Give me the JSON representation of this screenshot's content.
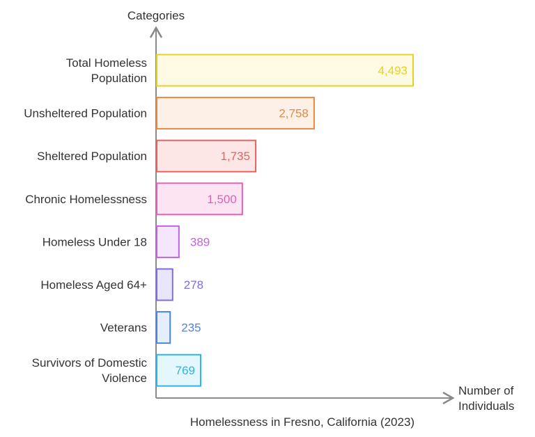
{
  "chart_data": {
    "type": "bar",
    "orientation": "horizontal",
    "title": "Homelessness in Fresno, California (2023)",
    "xlabel": "Number of Individuals",
    "ylabel": "Categories",
    "xlim": [
      0,
      4700
    ],
    "grid": false,
    "categories": [
      "Total Homeless Population",
      "Unsheltered Population",
      "Sheltered Population",
      "Chronic Homelessness",
      "Homeless Under 18",
      "Homeless Aged 64+",
      "Veterans",
      "Survivors of Domestic Violence"
    ],
    "values": [
      4493,
      2758,
      1735,
      1500,
      389,
      278,
      235,
      769
    ],
    "data_labels": [
      "4,493",
      "2,758",
      "1,735",
      "1,500",
      "389",
      "278",
      "235",
      "769"
    ],
    "colors": [
      "#e8d21d",
      "#e8893f",
      "#e9605f",
      "#e062b5",
      "#c064e0",
      "#7e6ce0",
      "#4c84e0",
      "#2bb5e8"
    ],
    "fills": [
      "#fefae3",
      "#fdf0e6",
      "#fde6e6",
      "#fce4f3",
      "#f6e6fb",
      "#e9e6fb",
      "#e5eefc",
      "#e3f7fd"
    ]
  }
}
